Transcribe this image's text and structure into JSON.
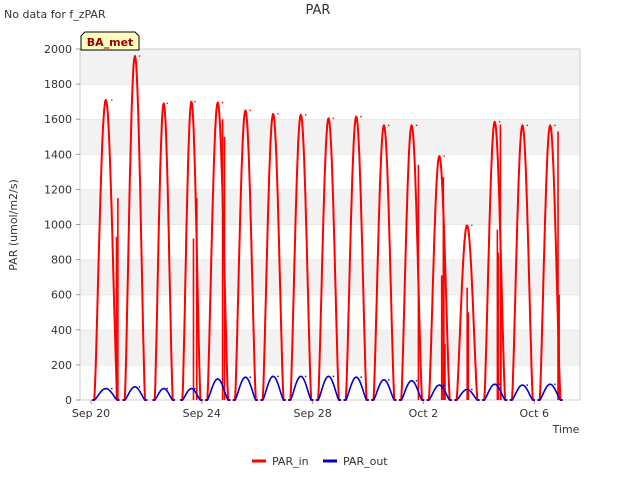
{
  "chart_data": {
    "type": "line",
    "title": "PAR",
    "note": "No data for f_zPAR",
    "badge": "BA_met",
    "xlabel": "Time",
    "ylabel": "PAR (umol/m2/s)",
    "ylim": [
      0,
      2000
    ],
    "xlim": [
      0,
      18
    ],
    "yticks": [
      0,
      200,
      400,
      600,
      800,
      1000,
      1200,
      1400,
      1600,
      1800,
      2000
    ],
    "xticks": [
      {
        "day": 0,
        "label": "Sep 20"
      },
      {
        "day": 4,
        "label": "Sep 24"
      },
      {
        "day": 8,
        "label": "Sep 28"
      },
      {
        "day": 12,
        "label": "Oct 2"
      },
      {
        "day": 16,
        "label": "Oct 6"
      }
    ],
    "day_start_fractions": [
      0.12,
      1.22,
      2.3,
      3.3,
      4.2,
      5.2,
      6.2,
      7.2,
      8.2,
      9.2,
      10.2,
      11.2,
      12.2,
      13.2,
      14.2,
      15.2,
      16.2
    ],
    "day_end_fractions": [
      0.95,
      1.95,
      2.95,
      3.95,
      4.95,
      5.95,
      6.95,
      7.95,
      8.95,
      9.95,
      10.95,
      11.95,
      12.95,
      13.95,
      14.95,
      15.95,
      16.95
    ],
    "series": [
      {
        "name": "PAR_in",
        "color": "#ff0000",
        "daily_peak_day": [
          0.75,
          1.75,
          2.75,
          3.75,
          4.75,
          5.75,
          6.75,
          7.75,
          8.75,
          9.75,
          10.75,
          11.75,
          12.75,
          13.75,
          14.75,
          15.75,
          16.75
        ],
        "daily_peak_value": [
          1710,
          1960,
          1690,
          1700,
          1695,
          1650,
          1630,
          1625,
          1605,
          1615,
          1565,
          1565,
          1390,
          995,
          1585,
          1565,
          1565
        ],
        "spikes": [
          {
            "day": 0.97,
            "value": 1150
          },
          {
            "day": 0.92,
            "value": 930
          },
          {
            "day": 3.82,
            "value": 1150
          },
          {
            "day": 3.7,
            "value": 920
          },
          {
            "day": 4.82,
            "value": 1500
          },
          {
            "day": 4.75,
            "value": 1600
          },
          {
            "day": 11.82,
            "value": 1340
          },
          {
            "day": 12.72,
            "value": 1270
          },
          {
            "day": 12.78,
            "value": 320
          },
          {
            "day": 12.74,
            "value": 980
          },
          {
            "day": 12.66,
            "value": 710
          },
          {
            "day": 13.58,
            "value": 640
          },
          {
            "day": 13.62,
            "value": 500
          },
          {
            "day": 14.78,
            "value": 1570
          },
          {
            "day": 14.8,
            "value": 530
          },
          {
            "day": 14.7,
            "value": 840
          },
          {
            "day": 14.67,
            "value": 970
          },
          {
            "day": 16.86,
            "value": 1530
          },
          {
            "day": 16.9,
            "value": 600
          }
        ]
      },
      {
        "name": "PAR_out",
        "color": "#0000cc",
        "daily_peak_day": [
          0.75,
          1.75,
          2.75,
          3.75,
          4.75,
          5.75,
          6.75,
          7.75,
          8.75,
          9.75,
          10.75,
          11.75,
          12.75,
          13.75,
          14.75,
          15.75,
          16.75
        ],
        "daily_peak_value": [
          65,
          75,
          65,
          65,
          120,
          130,
          135,
          135,
          135,
          130,
          115,
          110,
          85,
          60,
          90,
          85,
          90
        ]
      }
    ],
    "legend": [
      "PAR_in",
      "PAR_out"
    ],
    "legend_position": "bottom-center",
    "grid": true
  }
}
